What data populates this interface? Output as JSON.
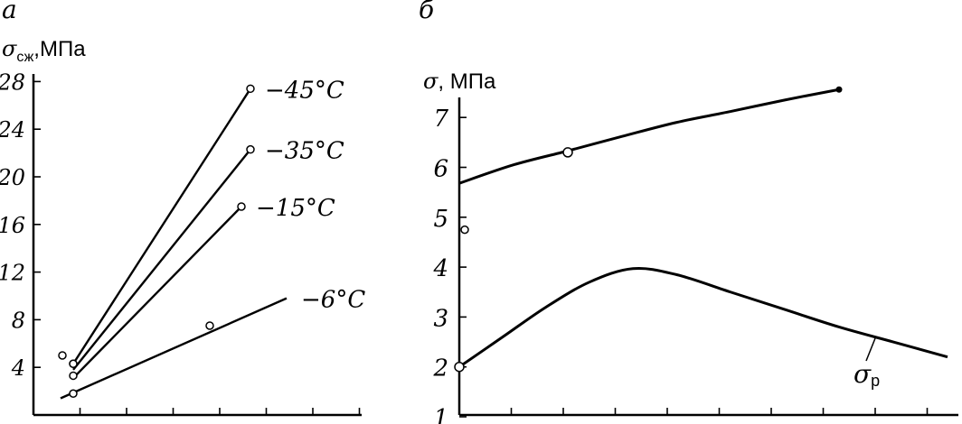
{
  "chart_data": [
    {
      "panel_letter": "а",
      "type": "line",
      "ylabel_main": "σ",
      "ylabel_sub": "сж",
      "ylabel_unit": ",МПа",
      "ylim": [
        0,
        28
      ],
      "y_ticks": [
        "28",
        "24",
        "20",
        "16",
        "12",
        "8",
        "4"
      ],
      "x_ticks_count": 7,
      "series": [
        {
          "name": "−45°C",
          "x": [
            0.44,
            2.4
          ],
          "y": [
            4.3,
            27.4
          ],
          "points": [
            {
              "x": 0.44,
              "y": 4.3
            },
            {
              "x": 2.4,
              "y": 27.4
            }
          ]
        },
        {
          "name": "−35°C",
          "x": [
            0.44,
            2.4
          ],
          "y": [
            3.8,
            22.3
          ],
          "points": [
            {
              "x": 0.44,
              "y": 4.3
            },
            {
              "x": 2.4,
              "y": 22.3
            }
          ]
        },
        {
          "name": "−15°C",
          "x": [
            0.44,
            2.3
          ],
          "y": [
            3.1,
            17.5
          ],
          "points": [
            {
              "x": 0.44,
              "y": 3.3
            },
            {
              "x": 2.3,
              "y": 17.5
            }
          ]
        },
        {
          "name": "−6°C",
          "x": [
            0.3,
            2.8
          ],
          "y": [
            1.4,
            9.8
          ],
          "points": [
            {
              "x": 0.44,
              "y": 1.8
            },
            {
              "x": 1.95,
              "y": 7.5
            }
          ]
        }
      ],
      "extra_points": [
        {
          "x": 0.32,
          "y": 5.0
        }
      ]
    },
    {
      "panel_letter": "б",
      "type": "line",
      "ylabel_main": "σ",
      "ylabel_unit": ", МПа",
      "ylim": [
        1,
        7.5
      ],
      "y_ticks": [
        "7",
        "6",
        "5",
        "4",
        "3",
        "2",
        "1"
      ],
      "x_ticks_count": 9,
      "series": [
        {
          "name": "",
          "x": [
            0,
            0.5,
            1,
            1.5,
            2,
            2.5,
            3,
            3.5
          ],
          "y": [
            5.68,
            6.05,
            6.33,
            6.62,
            6.9,
            7.12,
            7.35,
            7.56
          ],
          "points": [
            {
              "x": 1.0,
              "y": 6.3
            }
          ]
        },
        {
          "name": "σр",
          "x": [
            0,
            0.4,
            0.8,
            1.2,
            1.6,
            2.0,
            2.5,
            3.0,
            3.5,
            4.0,
            4.5
          ],
          "y": [
            2.0,
            2.6,
            3.2,
            3.7,
            3.97,
            3.85,
            3.5,
            3.15,
            2.8,
            2.5,
            2.2
          ],
          "points": [
            {
              "x": 0.0,
              "y": 2.0
            }
          ]
        }
      ],
      "extra_points": [
        {
          "x": 0.05,
          "y": 4.75
        }
      ],
      "curve_label_main": "σ",
      "curve_label_sub": "р"
    }
  ]
}
